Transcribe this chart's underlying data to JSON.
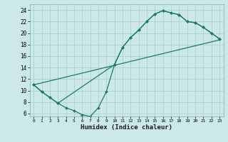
{
  "title": "",
  "xlabel": "Humidex (Indice chaleur)",
  "ylabel": "",
  "bg_color": "#cce8e8",
  "grid_color": "#aacccc",
  "line_color": "#1a7a6e",
  "xlim": [
    -0.5,
    23.5
  ],
  "ylim": [
    5.5,
    25.0
  ],
  "xticks": [
    0,
    1,
    2,
    3,
    4,
    5,
    6,
    7,
    8,
    9,
    10,
    11,
    12,
    13,
    14,
    15,
    16,
    17,
    18,
    19,
    20,
    21,
    22,
    23
  ],
  "yticks": [
    6,
    8,
    10,
    12,
    14,
    16,
    18,
    20,
    22,
    24
  ],
  "line1_x": [
    0,
    1,
    2,
    3,
    4,
    5,
    6,
    7,
    8,
    9,
    10,
    11,
    12,
    13,
    14,
    15,
    16,
    17,
    18,
    19,
    20,
    21,
    22,
    23
  ],
  "line1_y": [
    11.0,
    9.8,
    8.8,
    7.8,
    7.0,
    6.5,
    5.8,
    5.5,
    7.0,
    9.8,
    14.5,
    17.5,
    19.2,
    20.5,
    22.0,
    23.3,
    23.9,
    23.5,
    23.2,
    22.0,
    21.8,
    21.0,
    20.0,
    19.0
  ],
  "line2_x": [
    0,
    1,
    2,
    3,
    10,
    11,
    12,
    13,
    14,
    15,
    16,
    17,
    18,
    19,
    20,
    21,
    22,
    23
  ],
  "line2_y": [
    11.0,
    9.8,
    8.8,
    7.8,
    14.5,
    17.5,
    19.2,
    20.5,
    22.0,
    23.3,
    23.9,
    23.5,
    23.2,
    22.0,
    21.8,
    21.0,
    20.0,
    19.0
  ],
  "line3_x": [
    0,
    23
  ],
  "line3_y": [
    11.0,
    18.8
  ],
  "lw": 0.9,
  "ms": 2.0
}
